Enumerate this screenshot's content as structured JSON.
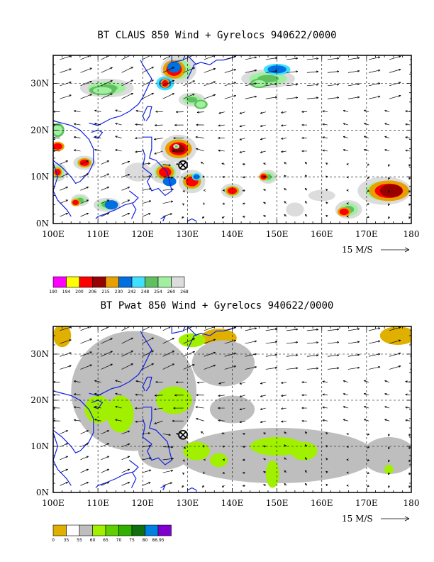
{
  "panels": [
    {
      "title": "BT CLAUS 850 Wind + Gyrelocs 940622/0000",
      "lat_labels": [
        "30N",
        "20N",
        "10N",
        "0N"
      ],
      "lon_labels": [
        "100E",
        "110E",
        "120E",
        "130E",
        "140E",
        "150E",
        "160E",
        "170E",
        "180"
      ],
      "vector_ref": "15 M/S",
      "colorbar": {
        "colors": [
          "#ff00ff",
          "#ffff00",
          "#ff0000",
          "#990000",
          "#e8a000",
          "#0070e0",
          "#40e0ff",
          "#60c060",
          "#a0f0a0",
          "#dcdcdc"
        ],
        "labels": [
          "190",
          "194",
          "200",
          "206",
          "215",
          "230",
          "242",
          "248",
          "254",
          "260",
          "268"
        ]
      }
    },
    {
      "title": "BT Pwat 850 Wind + Gyrelocs 940622/0000",
      "lat_labels": [
        "30N",
        "20N",
        "10N",
        "0N"
      ],
      "lon_labels": [
        "100E",
        "110E",
        "120E",
        "130E",
        "140E",
        "150E",
        "160E",
        "170E",
        "180"
      ],
      "vector_ref": "15 M/S",
      "colorbar": {
        "colors": [
          "#e0b000",
          "#ffffff",
          "#bebebe",
          "#a0f000",
          "#60d000",
          "#30b000",
          "#107010",
          "#0080e0",
          "#8000d0"
        ],
        "labels": [
          "0",
          "35",
          "55",
          "60",
          "65",
          "70",
          "75",
          "80",
          "86.95"
        ]
      }
    }
  ],
  "gyre_marker": {
    "lon": 129,
    "lat": 12.5
  }
}
